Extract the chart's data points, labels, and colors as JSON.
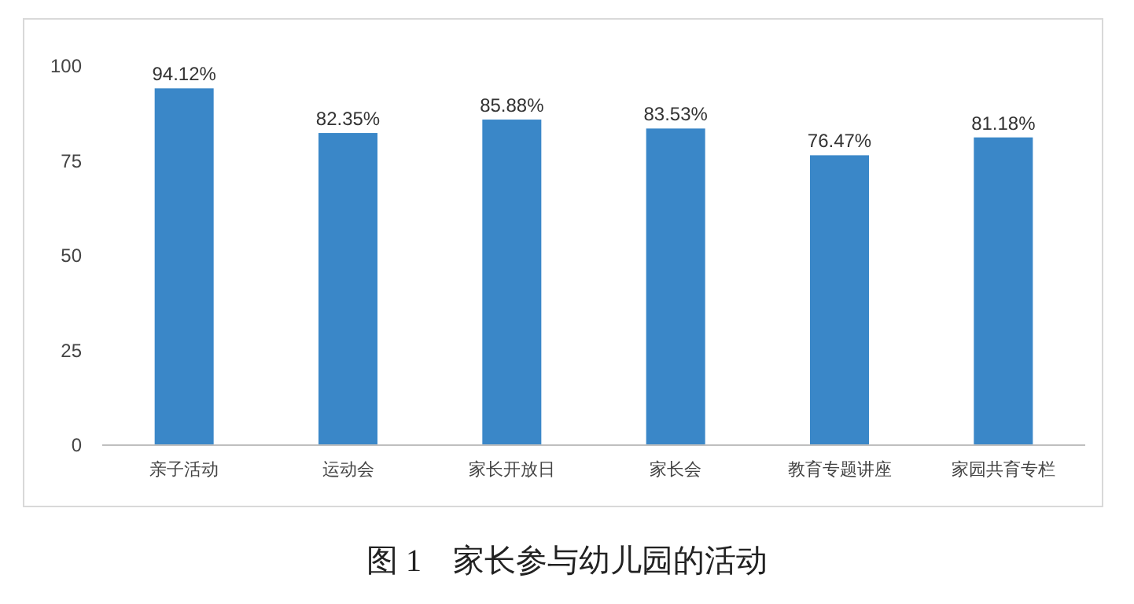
{
  "chart_data": {
    "type": "bar",
    "categories": [
      "亲子活动",
      "运动会",
      "家长开放日",
      "家长会",
      "教育专题讲座",
      "家园共育专栏"
    ],
    "series": [
      {
        "color": "#3a87c8",
        "values": [
          94.12,
          82.35,
          85.88,
          83.53,
          76.47,
          81.18
        ],
        "value_labels": [
          "94.12%",
          "82.35%",
          "85.88%",
          "83.53%",
          "76.47%",
          "81.18%"
        ]
      }
    ],
    "ylim": [
      0,
      100
    ],
    "yticks": [
      0,
      25,
      50,
      75,
      100
    ],
    "grid": false,
    "annotations": [
      "图 1　家长参与幼儿园的活动"
    ]
  }
}
